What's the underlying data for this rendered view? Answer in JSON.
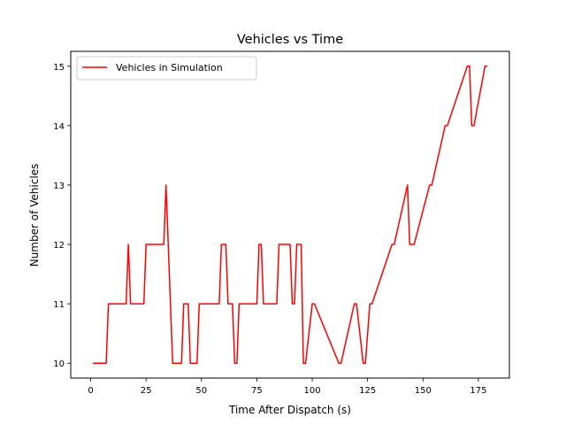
{
  "chart_data": {
    "type": "line",
    "title": "Vehicles vs Time",
    "xlabel": "Time After Dispatch (s)",
    "ylabel": "Number of Vehicles",
    "xlim": [
      -9,
      189
    ],
    "ylim": [
      9.75,
      15.25
    ],
    "xticks": [
      0,
      25,
      50,
      75,
      100,
      125,
      150,
      175
    ],
    "yticks": [
      10,
      11,
      12,
      13,
      14,
      15
    ],
    "legend": {
      "position": "top-left"
    },
    "grid": false,
    "series": [
      {
        "name": "Vehicles in Simulation",
        "color": "#ff0000",
        "x": [
          1,
          7,
          8,
          16,
          17,
          18,
          24,
          25,
          33,
          34,
          37,
          41,
          42,
          44,
          45,
          48,
          49,
          58,
          59,
          61,
          62,
          64,
          65,
          66,
          67,
          75,
          76,
          77,
          78,
          84,
          85,
          90,
          91,
          92,
          93,
          95,
          96,
          97,
          100,
          101,
          112,
          113,
          119,
          120,
          123,
          124,
          126,
          127,
          136,
          137,
          143,
          144,
          145,
          146,
          153,
          154,
          160,
          161,
          170,
          171,
          172,
          173,
          178,
          179
        ],
        "y": [
          10,
          10,
          11,
          11,
          12,
          11,
          11,
          12,
          12,
          13,
          10,
          10,
          11,
          11,
          10,
          10,
          11,
          11,
          12,
          12,
          11,
          11,
          10,
          10,
          11,
          11,
          12,
          12,
          11,
          11,
          12,
          12,
          11,
          11,
          12,
          12,
          10,
          10,
          11,
          11,
          10,
          10,
          11,
          11,
          10,
          10,
          11,
          11,
          12,
          12,
          13,
          12,
          12,
          12,
          13,
          13,
          14,
          14,
          15,
          15,
          14,
          14,
          15,
          15
        ]
      }
    ]
  }
}
